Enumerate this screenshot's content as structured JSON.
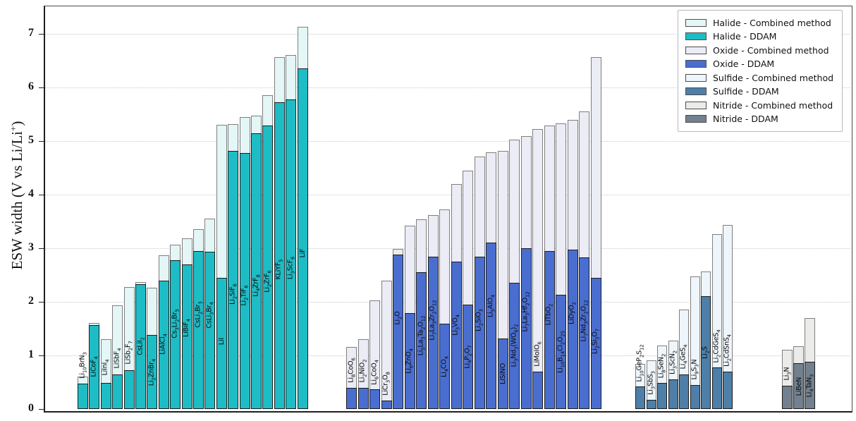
{
  "chart_data": {
    "type": "bar",
    "title": "",
    "ylabel": "ESW width (V vs Li/Li+)",
    "ylabel_main": "ESW width (V vs Li/Li",
    "ylabel_sup": "+",
    "ylabel_close": ")",
    "xlabel": "",
    "ylim": [
      0,
      7.5
    ],
    "yticks": [
      0,
      1,
      2,
      3,
      4,
      5,
      6,
      7
    ],
    "grid": "horizontal dotted lines at integer values",
    "legend_position": "upper-right",
    "bar_style": "overlaid: Combined-method bar (light) with DDAM bar (dark) in front, per compound",
    "legend": [
      {
        "label": "Halide - Combined method",
        "color": "#e4f6f6"
      },
      {
        "label": "Halide - DDAM",
        "color": "#1ebdc6"
      },
      {
        "label": "Oxide - Combined method",
        "color": "#ebecf5"
      },
      {
        "label": "Oxide - DDAM",
        "color": "#4a6ed0"
      },
      {
        "label": "Sulfide - Combined method",
        "color": "#eef5fb"
      },
      {
        "label": "Sulfide - DDAM",
        "color": "#4d7fa8"
      },
      {
        "label": "Nitride - Combined method",
        "color": "#ebebe9"
      },
      {
        "label": "Nitride - DDAM",
        "color": "#72808f"
      }
    ],
    "groups": [
      {
        "name": "Halide",
        "ddam_color": "#1ebdc6",
        "combined_color": "#e4f6f6",
        "compounds": [
          {
            "formula": "Li10BrN3",
            "ddam": 0.47,
            "combined": 0.61
          },
          {
            "formula": "LiCoF4",
            "ddam": 1.57,
            "combined": 1.6
          },
          {
            "formula": "LiInI4",
            "ddam": 0.49,
            "combined": 1.3
          },
          {
            "formula": "LiSbF4",
            "ddam": 0.65,
            "combined": 1.93
          },
          {
            "formula": "LiSb2F7",
            "ddam": 0.73,
            "combined": 2.27
          },
          {
            "formula": "CsLiI2",
            "ddam": 2.33,
            "combined": 2.37
          },
          {
            "formula": "Li2ZnBr4",
            "ddam": 1.38,
            "combined": 2.26
          },
          {
            "formula": "LiAlCl4",
            "ddam": 2.4,
            "combined": 2.87
          },
          {
            "formula": "Cs3Li2Br5",
            "ddam": 2.77,
            "combined": 3.06
          },
          {
            "formula": "LiBiF4",
            "ddam": 2.7,
            "combined": 3.18
          },
          {
            "formula": "CsLi2Br3",
            "ddam": 2.95,
            "combined": 3.36
          },
          {
            "formula": "CsLi3Br4",
            "ddam": 2.94,
            "combined": 3.55
          },
          {
            "formula": "LiI",
            "ddam": 2.45,
            "combined": 5.3
          },
          {
            "formula": "Li2SiF6",
            "ddam": 4.81,
            "combined": 5.32
          },
          {
            "formula": "Li2TiF6",
            "ddam": 4.77,
            "combined": 5.45
          },
          {
            "formula": "Li4ZrF8",
            "ddam": 5.14,
            "combined": 5.47
          },
          {
            "formula": "Li2ZrF6",
            "ddam": 5.29,
            "combined": 5.86
          },
          {
            "formula": "KLiYF5",
            "ddam": 5.73,
            "combined": 6.56
          },
          {
            "formula": "Li3ScF6",
            "ddam": 5.78,
            "combined": 6.61
          },
          {
            "formula": "LiF",
            "ddam": 6.35,
            "combined": 7.13
          }
        ]
      },
      {
        "name": "Oxide",
        "ddam_color": "#4a6ed0",
        "combined_color": "#ebecf5",
        "compounds": [
          {
            "formula": "Li8CoO6",
            "ddam": 0.4,
            "combined": 1.16
          },
          {
            "formula": "Li2NiO2",
            "ddam": 0.39,
            "combined": 1.3
          },
          {
            "formula": "Li6CoO4",
            "ddam": 0.37,
            "combined": 2.02
          },
          {
            "formula": "LiCr3O8",
            "ddam": 0.16,
            "combined": 2.39
          },
          {
            "formula": "Li2O",
            "ddam": 2.88,
            "combined": 2.99
          },
          {
            "formula": "Li6ZnO4",
            "ddam": 1.79,
            "combined": 3.42
          },
          {
            "formula": "Li5La3Ta2O12",
            "ddam": 2.55,
            "combined": 3.54
          },
          {
            "formula": "Li7La3Zr2O12",
            "ddam": 2.84,
            "combined": 3.62
          },
          {
            "formula": "Li4CO4",
            "ddam": 1.59,
            "combined": 3.72
          },
          {
            "formula": "Li3VO4",
            "ddam": 2.75,
            "combined": 4.2
          },
          {
            "formula": "Li4P2O7",
            "ddam": 1.95,
            "combined": 4.45
          },
          {
            "formula": "Li2SiO3",
            "ddam": 2.84,
            "combined": 4.71
          },
          {
            "formula": "Li5AlO4",
            "ddam": 3.1,
            "combined": 4.79
          },
          {
            "formula": "LiSiNO",
            "ddam": 1.31,
            "combined": 4.82
          },
          {
            "formula": "Li3Nd3(WO6)2",
            "ddam": 2.36,
            "combined": 5.03
          },
          {
            "formula": "Li7La3Hf2O12",
            "ddam": 3.0,
            "combined": 5.09
          },
          {
            "formula": "LiMoIO6",
            "ddam": 0.7,
            "combined": 5.22
          },
          {
            "formula": "LiTbO2",
            "ddam": 2.95,
            "combined": 5.29
          },
          {
            "formula": "Li10B14Cl2O25",
            "ddam": 2.13,
            "combined": 5.33
          },
          {
            "formula": "LiDyO2",
            "ddam": 2.97,
            "combined": 5.39
          },
          {
            "formula": "Li7Nd3Zr2O12",
            "ddam": 2.83,
            "combined": 5.55
          },
          {
            "formula": "Li2Si3O7",
            "ddam": 2.45,
            "combined": 6.56
          }
        ]
      },
      {
        "name": "Sulfide",
        "ddam_color": "#4d7fa8",
        "combined_color": "#eef5fb",
        "compounds": [
          {
            "formula": "Li10GeP2S12",
            "ddam": 0.42,
            "combined": 0.84
          },
          {
            "formula": "Li3SbS3",
            "ddam": 0.17,
            "combined": 0.91
          },
          {
            "formula": "Li8SeN2",
            "ddam": 0.49,
            "combined": 1.18
          },
          {
            "formula": "Li3ScN2",
            "ddam": 0.55,
            "combined": 1.27
          },
          {
            "formula": "Li4GeS4",
            "ddam": 0.65,
            "combined": 1.86
          },
          {
            "formula": "Li9S3N",
            "ddam": 0.45,
            "combined": 2.47
          },
          {
            "formula": "Li2S",
            "ddam": 2.1,
            "combined": 2.57
          },
          {
            "formula": "Li2CdGeS4",
            "ddam": 0.78,
            "combined": 3.26
          },
          {
            "formula": "Li2CdSnS4",
            "ddam": 0.7,
            "combined": 3.43
          }
        ]
      },
      {
        "name": "Nitride",
        "ddam_color": "#72808f",
        "combined_color": "#ebebe9",
        "compounds": [
          {
            "formula": "Li3N",
            "ddam": 0.44,
            "combined": 1.11
          },
          {
            "formula": "LiBeN",
            "ddam": 0.85,
            "combined": 1.17
          },
          {
            "formula": "Li4TaN3",
            "ddam": 0.88,
            "combined": 1.7
          }
        ]
      }
    ]
  }
}
